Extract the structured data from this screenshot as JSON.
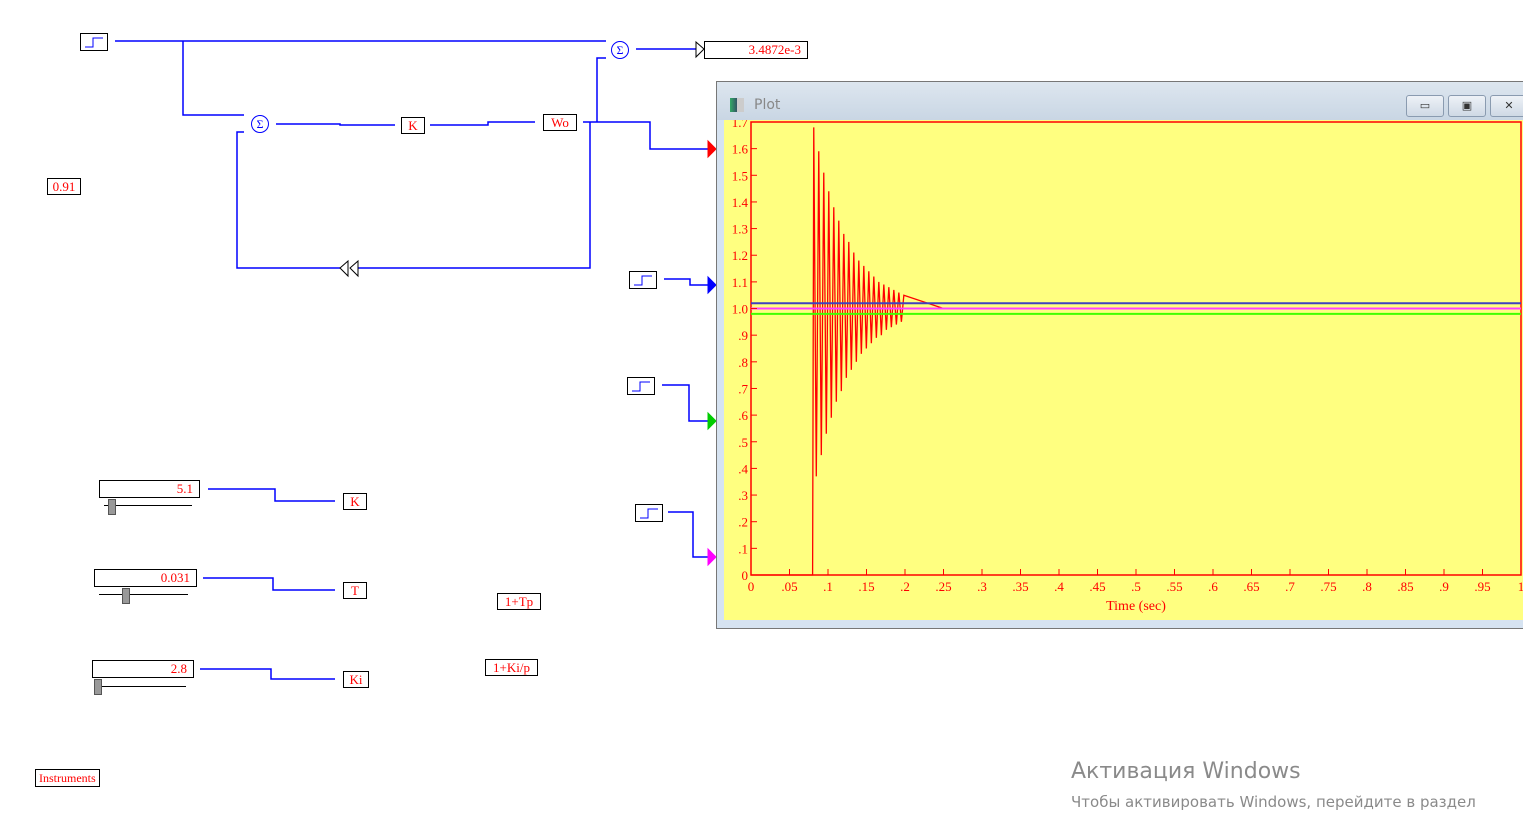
{
  "diagram": {
    "display_value": "3.4872e-3",
    "constant_value": "0.91",
    "blocks": {
      "k": "K",
      "wo": "Wo",
      "sum": "Σ",
      "k2": "K",
      "t": "T",
      "ki": "Ki",
      "tp": "1+Tp",
      "kip": "1+Ki/p"
    },
    "sliders": [
      {
        "value": "5.1",
        "fraction": 0.05
      },
      {
        "value": "0.031",
        "fraction": 0.3
      },
      {
        "value": "2.8",
        "fraction": 0.03
      }
    ],
    "instruments_label": "Instruments",
    "wire_color": "#0000ff"
  },
  "plot_window": {
    "title": "Plot",
    "minimize": "▭",
    "maximize": "▣",
    "close": "✕"
  },
  "chart_data": {
    "type": "line",
    "xlabel": "Time (sec)",
    "ylabel": "",
    "xlim": [
      0,
      1
    ],
    "ylim": [
      0,
      1.7
    ],
    "xticks": [
      "0",
      ".05",
      ".1",
      ".15",
      ".2",
      ".25",
      ".3",
      ".35",
      ".4",
      ".45",
      ".5",
      ".55",
      ".6",
      ".65",
      ".7",
      ".75",
      ".8",
      ".85",
      ".9",
      ".95",
      "1"
    ],
    "yticks": [
      "0",
      ".1",
      ".2",
      ".3",
      ".4",
      ".5",
      ".6",
      ".7",
      ".8",
      ".9",
      "1.0",
      "1.1",
      "1.2",
      "1.3",
      "1.4",
      "1.5",
      "1.6",
      "1.7"
    ],
    "background": "#ffff80",
    "axis_color": "#ff0000",
    "series": [
      {
        "color": "#ff0000",
        "x": [
          0,
          0.08,
          0.0815,
          0.0848,
          0.088,
          0.0913,
          0.0945,
          0.0978,
          0.101,
          0.1043,
          0.1075,
          0.1108,
          0.114,
          0.1173,
          0.1205,
          0.1238,
          0.127,
          0.1303,
          0.1335,
          0.1368,
          0.14,
          0.1433,
          0.1465,
          0.1498,
          0.153,
          0.1563,
          0.1595,
          0.1628,
          0.166,
          0.1693,
          0.1725,
          0.1758,
          0.179,
          0.1823,
          0.1855,
          0.1888,
          0.192,
          0.1953,
          0.1985,
          0.25,
          1
        ],
        "y": [
          0,
          0,
          1.68,
          0.37,
          1.59,
          0.45,
          1.51,
          0.53,
          1.44,
          0.59,
          1.38,
          0.65,
          1.33,
          0.69,
          1.28,
          0.74,
          1.25,
          0.77,
          1.21,
          0.8,
          1.18,
          0.83,
          1.16,
          0.85,
          1.14,
          0.87,
          1.12,
          0.89,
          1.1,
          0.9,
          1.09,
          0.92,
          1.08,
          0.93,
          1.07,
          0.94,
          1.06,
          0.95,
          1.05,
          1.0,
          1.0
        ]
      },
      {
        "color": "#4040c0",
        "x": [
          0,
          1
        ],
        "y": [
          1.02,
          1.02
        ]
      },
      {
        "color": "#ff40ff",
        "x": [
          0,
          1
        ],
        "y": [
          1.0,
          1.0
        ]
      },
      {
        "color": "#40ff00",
        "x": [
          0,
          1
        ],
        "y": [
          0.98,
          0.98
        ]
      }
    ]
  },
  "watermark": {
    "title": "Активация Windows",
    "subtitle": "Чтобы активировать Windows, перейдите в раздел"
  }
}
